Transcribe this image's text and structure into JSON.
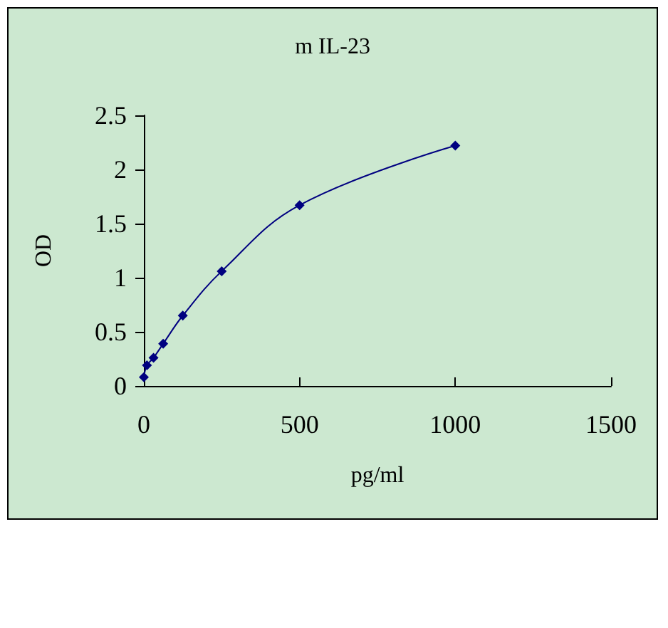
{
  "chart_data": {
    "type": "line",
    "title": "m IL-23",
    "xlabel": "pg/ml",
    "ylabel": "OD",
    "x": [
      0,
      10,
      31,
      62,
      125,
      250,
      500,
      1000
    ],
    "series": [
      {
        "color": "#000080",
        "values": [
          0.08,
          0.19,
          0.26,
          0.39,
          0.65,
          1.06,
          1.67,
          2.22
        ]
      }
    ],
    "xlim": [
      0,
      1500
    ],
    "xticks": [
      0,
      500,
      1000,
      1500
    ],
    "ylim": [
      0,
      2.5
    ],
    "yticks": [
      0,
      0.5,
      1,
      1.5,
      2,
      2.5
    ],
    "marker": "diamond",
    "line_style": "solid"
  }
}
